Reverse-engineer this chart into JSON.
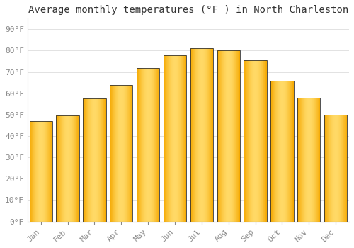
{
  "title": "Average monthly temperatures (°F ) in North Charleston",
  "months": [
    "Jan",
    "Feb",
    "Mar",
    "Apr",
    "May",
    "Jun",
    "Jul",
    "Aug",
    "Sep",
    "Oct",
    "Nov",
    "Dec"
  ],
  "values": [
    47,
    49.5,
    57.5,
    64,
    72,
    78,
    81,
    80,
    75.5,
    66,
    58,
    50
  ],
  "bar_color_center": "#FFD966",
  "bar_color_edge": "#F5A800",
  "bar_edge_color": "#333333",
  "background_color": "#FFFFFF",
  "grid_color": "#DDDDDD",
  "ylim": [
    0,
    95
  ],
  "yticks": [
    0,
    10,
    20,
    30,
    40,
    50,
    60,
    70,
    80,
    90
  ],
  "ytick_labels": [
    "0°F",
    "10°F",
    "20°F",
    "30°F",
    "40°F",
    "50°F",
    "60°F",
    "70°F",
    "80°F",
    "90°F"
  ],
  "title_fontsize": 10,
  "tick_fontsize": 8,
  "tick_color": "#888888",
  "spine_color": "#CCCCCC",
  "bar_width": 0.85
}
